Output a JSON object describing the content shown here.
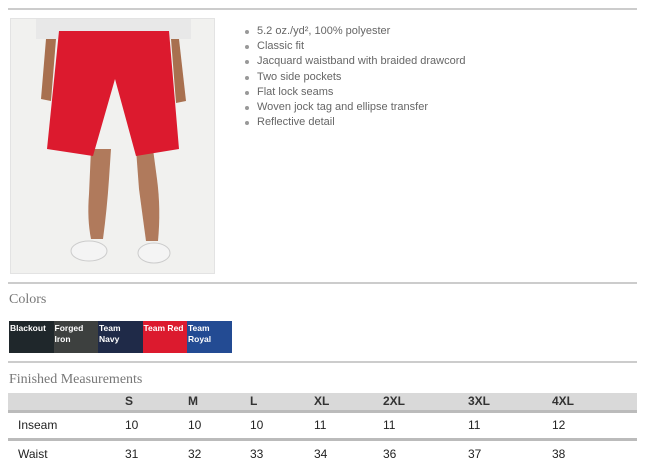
{
  "product": {
    "image_alt": "red shorts",
    "features": [
      "5.2 oz./yd², 100% polyester",
      "Classic fit",
      "Jacquard waistband with braided drawcord",
      "Two side pockets",
      "Flat lock seams",
      "Woven jock tag and ellipse transfer",
      "Reflective detail"
    ]
  },
  "colors": {
    "title": "Colors",
    "swatches": [
      {
        "label_1": "Blackout",
        "label_2": "",
        "color": "#1f272b"
      },
      {
        "label_1": "Forged",
        "label_2": "Iron",
        "color": "#3d403f"
      },
      {
        "label_1": "Team",
        "label_2": "Navy",
        "color": "#1f2a48"
      },
      {
        "label_1": "Team Red",
        "label_2": "",
        "color": "#dc1a2e"
      },
      {
        "label_1": "Team",
        "label_2": "Royal",
        "color": "#234b93"
      }
    ]
  },
  "measurements": {
    "title": "Finished Measurements",
    "headers": [
      "",
      "S",
      "M",
      "L",
      "XL",
      "2XL",
      "3XL",
      "4XL"
    ],
    "rows": [
      [
        "Inseam",
        "10",
        "10",
        "10",
        "11",
        "11",
        "11",
        "12"
      ],
      [
        "Waist",
        "31",
        "32",
        "33",
        "34",
        "36",
        "37",
        "38"
      ]
    ]
  }
}
